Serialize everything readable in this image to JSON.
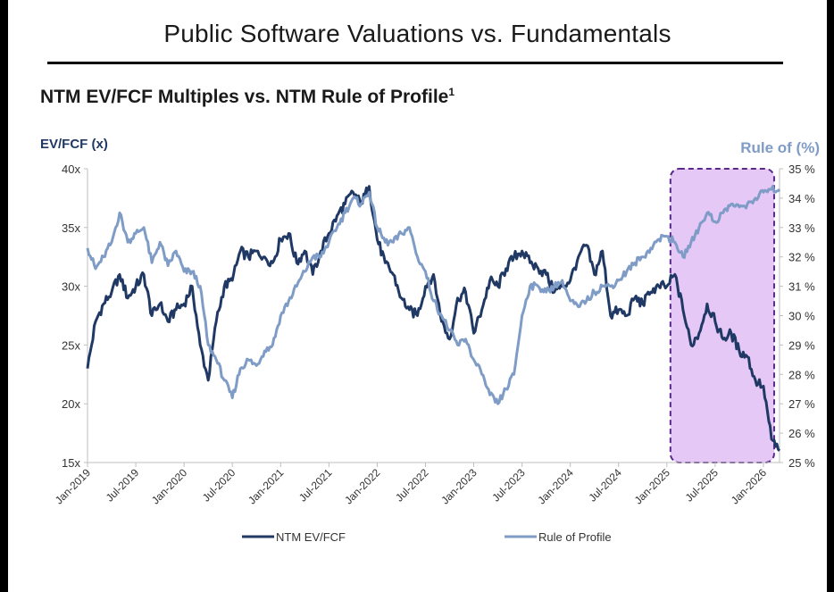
{
  "title": "Public Software Valuations vs. Fundamentals",
  "subtitle": "NTM EV/FCF Multiples vs. NTM Rule of Profile",
  "subtitle_footnote": "1",
  "colors": {
    "ev_fcf": "#1f3864",
    "rule_of_profile": "#7f9cc6",
    "highlight_fill": "#e6c8f6",
    "highlight_border": "#5a2a8a"
  },
  "chart_data": {
    "type": "line",
    "title": "NTM EV/FCF Multiples vs. NTM Rule of Profile",
    "ylabel": "EV/FCF (x)",
    "y2label": "Rule of (%)",
    "ylim": [
      15,
      40
    ],
    "y2lim": [
      25,
      35
    ],
    "xlim": [
      "2019-01",
      "2026-03"
    ],
    "y_ticks": [
      "15x",
      "20x",
      "25x",
      "30x",
      "35x",
      "40x"
    ],
    "y_tick_values": [
      15,
      20,
      25,
      30,
      35,
      40
    ],
    "y2_ticks": [
      "25 %",
      "26 %",
      "27 %",
      "28 %",
      "29 %",
      "30 %",
      "31 %",
      "32 %",
      "33 %",
      "34 %",
      "35 %"
    ],
    "y2_tick_values": [
      25,
      26,
      27,
      28,
      29,
      30,
      31,
      32,
      33,
      34,
      35
    ],
    "x_ticks": [
      "Jan-2019",
      "Jul-2019",
      "Jan-2020",
      "Jul-2020",
      "Jan-2021",
      "Jul-2021",
      "Jan-2022",
      "Jul-2022",
      "Jan-2023",
      "Jul-2023",
      "Jan-2024",
      "Jul-2024",
      "Jan-2025",
      "Jul-2025",
      "Jan-2026"
    ],
    "x_tick_dates": [
      "2019-01",
      "2019-07",
      "2020-01",
      "2020-07",
      "2021-01",
      "2021-07",
      "2022-01",
      "2022-07",
      "2023-01",
      "2023-07",
      "2024-01",
      "2024-07",
      "2025-01",
      "2025-07",
      "2026-01"
    ],
    "grid": false,
    "legend": "bottom",
    "highlight_region": {
      "start": "2025-01",
      "end": "2026-01",
      "ylim": [
        15,
        40
      ]
    },
    "series": [
      {
        "name": "NTM EV/FCF",
        "axis": "left",
        "x": [
          "2019-01",
          "2019-02",
          "2019-03",
          "2019-04",
          "2019-05",
          "2019-06",
          "2019-07",
          "2019-08",
          "2019-09",
          "2019-10",
          "2019-11",
          "2019-12",
          "2020-01",
          "2020-02",
          "2020-03",
          "2020-04",
          "2020-05",
          "2020-06",
          "2020-07",
          "2020-08",
          "2020-09",
          "2020-10",
          "2020-11",
          "2020-12",
          "2021-01",
          "2021-02",
          "2021-03",
          "2021-04",
          "2021-05",
          "2021-06",
          "2021-07",
          "2021-08",
          "2021-09",
          "2021-10",
          "2021-11",
          "2021-12",
          "2022-01",
          "2022-02",
          "2022-03",
          "2022-04",
          "2022-05",
          "2022-06",
          "2022-07",
          "2022-08",
          "2022-09",
          "2022-10",
          "2022-11",
          "2022-12",
          "2023-01",
          "2023-02",
          "2023-03",
          "2023-04",
          "2023-05",
          "2023-06",
          "2023-07",
          "2023-08",
          "2023-09",
          "2023-10",
          "2023-11",
          "2023-12",
          "2024-01",
          "2024-02",
          "2024-03",
          "2024-04",
          "2024-05",
          "2024-06",
          "2024-07",
          "2024-08",
          "2024-09",
          "2024-10",
          "2024-11",
          "2024-12",
          "2025-01",
          "2025-02",
          "2025-03",
          "2025-04",
          "2025-05",
          "2025-06",
          "2025-07",
          "2025-08",
          "2025-09",
          "2025-10",
          "2025-11",
          "2025-12",
          "2026-01",
          "2026-02",
          "2026-03"
        ],
        "values": [
          23.0,
          27.0,
          28.5,
          29.5,
          31.0,
          29.0,
          30.0,
          31.0,
          27.5,
          28.5,
          27.0,
          28.0,
          28.5,
          30.0,
          25.0,
          22.0,
          27.0,
          30.0,
          30.5,
          33.0,
          32.5,
          33.0,
          32.5,
          32.0,
          34.0,
          34.5,
          32.0,
          33.0,
          31.0,
          33.0,
          34.5,
          36.0,
          37.0,
          38.0,
          37.0,
          38.5,
          34.0,
          32.0,
          31.0,
          29.0,
          28.0,
          27.5,
          30.0,
          31.0,
          27.0,
          25.5,
          29.0,
          29.5,
          26.0,
          28.0,
          30.5,
          30.0,
          31.5,
          32.5,
          33.0,
          32.0,
          31.5,
          31.0,
          29.5,
          30.0,
          30.5,
          32.5,
          33.5,
          31.0,
          33.0,
          27.5,
          28.0,
          27.5,
          29.0,
          28.5,
          29.5,
          30.0,
          30.0,
          31.0,
          28.0,
          25.0,
          26.0,
          28.5,
          27.0,
          25.5,
          26.0,
          24.5,
          24.0,
          22.0,
          21.5,
          17.0,
          16.0
        ]
      },
      {
        "name": "Rule of Profile",
        "axis": "right",
        "x": [
          "2019-01",
          "2019-02",
          "2019-03",
          "2019-04",
          "2019-05",
          "2019-06",
          "2019-07",
          "2019-08",
          "2019-09",
          "2019-10",
          "2019-11",
          "2019-12",
          "2020-01",
          "2020-02",
          "2020-03",
          "2020-04",
          "2020-05",
          "2020-06",
          "2020-07",
          "2020-08",
          "2020-09",
          "2020-10",
          "2020-11",
          "2020-12",
          "2021-01",
          "2021-02",
          "2021-03",
          "2021-04",
          "2021-05",
          "2021-06",
          "2021-07",
          "2021-08",
          "2021-09",
          "2021-10",
          "2021-11",
          "2021-12",
          "2022-01",
          "2022-02",
          "2022-03",
          "2022-04",
          "2022-05",
          "2022-06",
          "2022-07",
          "2022-08",
          "2022-09",
          "2022-10",
          "2022-11",
          "2022-12",
          "2023-01",
          "2023-02",
          "2023-03",
          "2023-04",
          "2023-05",
          "2023-06",
          "2023-07",
          "2023-08",
          "2023-09",
          "2023-10",
          "2023-11",
          "2023-12",
          "2024-01",
          "2024-02",
          "2024-03",
          "2024-04",
          "2024-05",
          "2024-06",
          "2024-07",
          "2024-08",
          "2024-09",
          "2024-10",
          "2024-11",
          "2024-12",
          "2025-01",
          "2025-02",
          "2025-03",
          "2025-04",
          "2025-05",
          "2025-06",
          "2025-07",
          "2025-08",
          "2025-09",
          "2025-10",
          "2025-11",
          "2025-12",
          "2026-01",
          "2026-02",
          "2026-03"
        ],
        "values": [
          32.3,
          31.6,
          32.0,
          32.5,
          33.5,
          32.5,
          32.8,
          33.0,
          31.8,
          32.5,
          31.7,
          32.2,
          31.5,
          31.5,
          31.0,
          29.0,
          28.5,
          27.8,
          27.2,
          28.2,
          28.5,
          28.3,
          28.8,
          29.0,
          30.0,
          30.5,
          31.0,
          31.5,
          32.0,
          32.0,
          32.5,
          33.0,
          33.5,
          34.0,
          33.8,
          34.2,
          33.0,
          32.5,
          32.5,
          32.8,
          33.0,
          32.0,
          31.5,
          30.5,
          30.0,
          29.5,
          29.0,
          29.2,
          28.5,
          28.0,
          27.3,
          27.0,
          27.5,
          28.0,
          30.0,
          31.0,
          31.0,
          30.8,
          31.0,
          31.2,
          30.5,
          30.3,
          30.5,
          30.8,
          31.0,
          31.0,
          31.2,
          31.5,
          31.8,
          32.0,
          32.3,
          32.6,
          32.7,
          32.5,
          32.0,
          32.5,
          33.0,
          33.5,
          33.2,
          33.5,
          33.8,
          33.7,
          33.8,
          34.0,
          34.2,
          34.3,
          34.3
        ]
      }
    ]
  }
}
